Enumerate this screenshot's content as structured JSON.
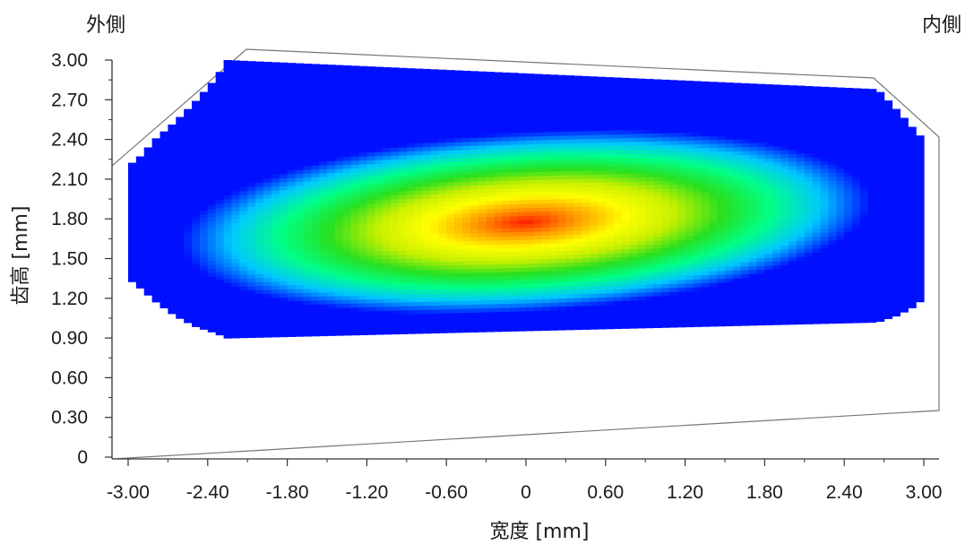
{
  "chart_data": {
    "type": "heatmap",
    "title": "",
    "corner_labels": {
      "left": "外側",
      "right": "内側"
    },
    "xlabel": "宽度 [mm]",
    "ylabel": "齿高 [mm]",
    "xlim": [
      -3.0,
      3.0
    ],
    "ylim": [
      0,
      3.0
    ],
    "x_ticks": [
      "-3.00",
      "-2.40",
      "-1.80",
      "-1.20",
      "-0.60",
      "0",
      "0.60",
      "1.20",
      "1.80",
      "2.40",
      "3.00"
    ],
    "y_ticks": [
      "0",
      "0.30",
      "0.60",
      "0.90",
      "1.20",
      "1.50",
      "1.80",
      "2.10",
      "2.40",
      "2.70",
      "3.00"
    ],
    "contact_region_bounds": {
      "x": [
        -3.0,
        -2.9,
        -2.8,
        -2.65,
        -2.5,
        -2.35,
        -2.25,
        2.65,
        2.8,
        2.95,
        3.0
      ],
      "y_top": [
        2.2,
        2.28,
        2.4,
        2.53,
        2.68,
        2.85,
        3.0,
        2.78,
        2.62,
        2.45,
        2.4
      ],
      "y_bottom": [
        1.35,
        1.27,
        1.18,
        1.07,
        0.99,
        0.94,
        0.9,
        1.02,
        1.07,
        1.15,
        1.21
      ]
    },
    "peak": {
      "x": 0.0,
      "y": 1.78
    },
    "colormap": [
      "#0010ff",
      "#00c8ff",
      "#00ff88",
      "#28e020",
      "#c8f000",
      "#ffff00",
      "#ff9800",
      "#ff1c00"
    ]
  }
}
